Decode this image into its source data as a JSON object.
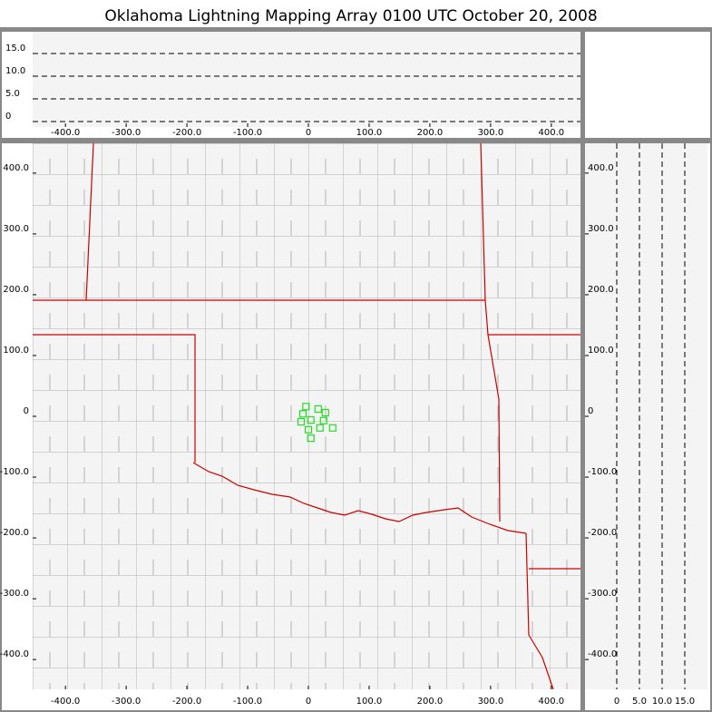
{
  "chart_data": [
    {
      "type": "scatter",
      "x": [],
      "y": [],
      "xlim": [
        -454,
        448
      ],
      "ylim": [
        -1.2,
        19.8
      ],
      "xticks": [
        {
          "value": -400,
          "label": "-400.0"
        },
        {
          "value": -300,
          "label": "-300.0"
        },
        {
          "value": -200,
          "label": "-200.0"
        },
        {
          "value": -100,
          "label": "-100.0"
        },
        0,
        {
          "value": 100,
          "label": "100.0"
        },
        {
          "value": 200,
          "label": "200.0"
        },
        {
          "value": 300,
          "label": "300.0"
        },
        {
          "value": 400,
          "label": "400.0"
        }
      ],
      "yticks": [
        0,
        {
          "value": 5,
          "label": "5.0"
        },
        {
          "value": 10,
          "label": "10.0"
        },
        {
          "value": 15,
          "label": "15.0"
        }
      ],
      "grid": true
    },
    {
      "type": "scatter",
      "title": "Oklahoma Lightning Mapping Array   0100 UTC  October 20, 2008",
      "color": "#22dd22",
      "x": [
        -4,
        -9,
        -12,
        4,
        16,
        28,
        25,
        19,
        0,
        40,
        4
      ],
      "y": [
        16,
        4,
        -9,
        -6,
        12,
        6,
        -7,
        -19,
        -22,
        -19,
        -36
      ],
      "xlim": [
        -454,
        448
      ],
      "ylim": [
        -449,
        449
      ],
      "xticks": [
        {
          "value": -400,
          "label": "-400.0"
        },
        {
          "value": -300,
          "label": "-300.0"
        },
        {
          "value": -200,
          "label": "-200.0"
        },
        {
          "value": -100,
          "label": "-100.0"
        },
        0,
        {
          "value": 100,
          "label": "100.0"
        },
        {
          "value": 200,
          "label": "200.0"
        },
        {
          "value": 300,
          "label": "300.0"
        },
        {
          "value": 400,
          "label": "400.0"
        }
      ],
      "yticks": [
        {
          "value": 400,
          "label": "400.0"
        },
        {
          "value": 300,
          "label": "300.0"
        },
        {
          "value": 200,
          "label": "200.0"
        },
        {
          "value": 100,
          "label": "100.0"
        },
        0,
        {
          "value": -100,
          "label": "-100.0"
        },
        {
          "value": -200,
          "label": "-200.0"
        },
        {
          "value": -300,
          "label": "-300.0"
        },
        {
          "value": -400,
          "label": "-400.0"
        }
      ],
      "grid": false
    },
    {
      "type": "scatter",
      "x": [],
      "y": [],
      "xlim": [
        -7,
        20
      ],
      "ylim": [
        -449,
        449
      ],
      "xticks": [
        0,
        {
          "value": 5,
          "label": "5.0"
        },
        {
          "value": 10,
          "label": "10.0"
        },
        {
          "value": 15,
          "label": "15.0"
        }
      ],
      "yticks": [
        {
          "value": 400,
          "label": "400.0"
        },
        {
          "value": 300,
          "label": "300.0"
        },
        {
          "value": 200,
          "label": "200.0"
        },
        {
          "value": 100,
          "label": "100.0"
        },
        0,
        {
          "value": -100,
          "label": "-100.0"
        },
        {
          "value": -200,
          "label": "-200.0"
        },
        {
          "value": -300,
          "label": "-300.0"
        },
        {
          "value": -400,
          "label": "-400.0"
        }
      ],
      "grid": true
    }
  ]
}
